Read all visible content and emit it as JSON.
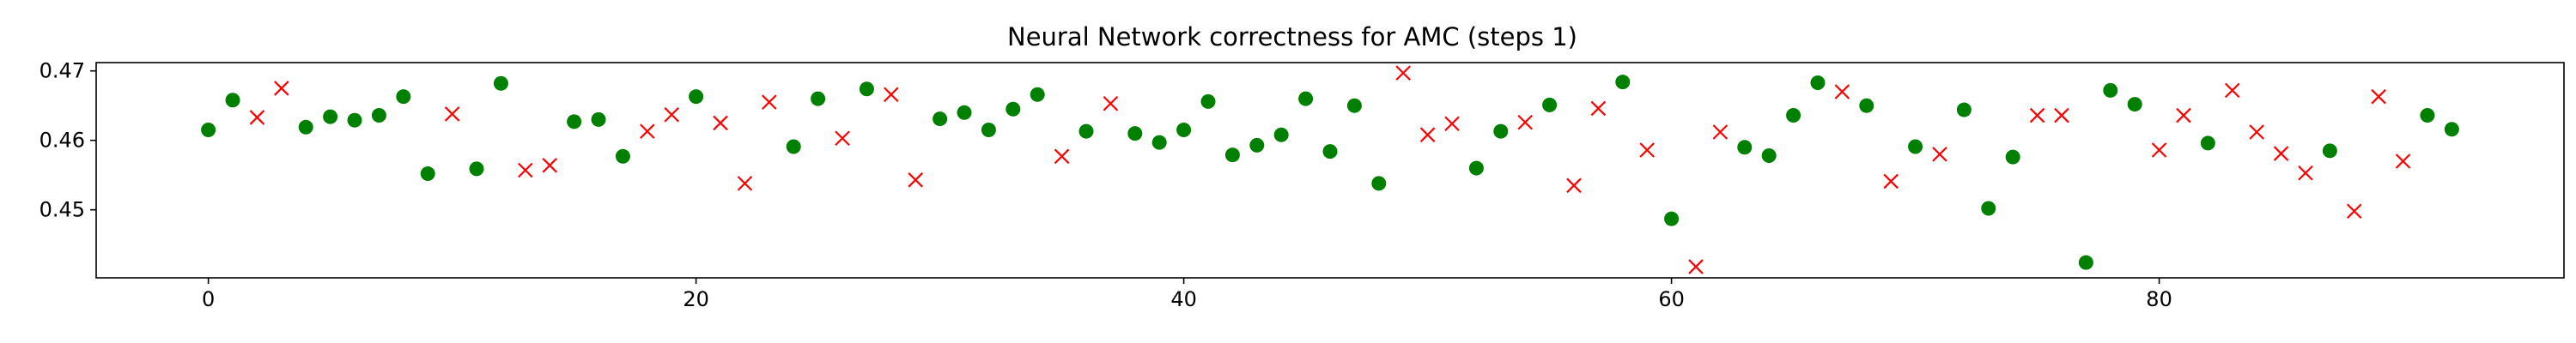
{
  "chart_data": {
    "type": "scatter",
    "title": "Neural Network correctness for AMC (steps 1)",
    "xlabel": "",
    "ylabel": "",
    "xlim": [
      -4.6,
      96.6
    ],
    "ylim": [
      0.4402,
      0.4712
    ],
    "xticks": [
      0,
      20,
      40,
      60,
      80
    ],
    "yticks": [
      0.45,
      0.46,
      0.47
    ],
    "grid": false,
    "legend": "none",
    "colors": {
      "correct": "#008000",
      "incorrect": "#ff0000"
    },
    "series": [
      {
        "marker": "circle",
        "x": [
          0,
          1,
          4,
          5,
          6,
          7,
          8,
          9,
          11,
          12,
          15,
          16,
          17,
          20,
          24,
          25,
          27,
          30,
          31,
          32,
          33,
          34,
          36,
          38,
          39,
          40,
          41,
          42,
          43,
          44,
          45,
          46,
          47,
          48,
          52,
          53,
          55,
          58,
          60,
          63,
          64,
          65,
          66,
          68,
          70,
          72,
          73,
          74,
          77,
          78,
          79,
          82,
          87,
          91,
          92
        ],
        "y": [
          0.4615,
          0.4658,
          0.4619,
          0.4634,
          0.4629,
          0.4636,
          0.4663,
          0.4552,
          0.4559,
          0.4682,
          0.4627,
          0.463,
          0.4577,
          0.4663,
          0.4591,
          0.466,
          0.4674,
          0.4631,
          0.464,
          0.4615,
          0.4645,
          0.4666,
          0.4613,
          0.461,
          0.4597,
          0.4615,
          0.4656,
          0.4579,
          0.4593,
          0.4608,
          0.466,
          0.4584,
          0.465,
          0.4538,
          0.456,
          0.4613,
          0.4651,
          0.4684,
          0.4487,
          0.459,
          0.4578,
          0.4636,
          0.4683,
          0.465,
          0.4591,
          0.4644,
          0.4502,
          0.4576,
          0.4424,
          0.4672,
          0.4652,
          0.4596,
          0.4585,
          0.4636,
          0.4616
        ]
      },
      {
        "marker": "x",
        "x": [
          2,
          3,
          10,
          13,
          14,
          18,
          19,
          21,
          22,
          23,
          26,
          28,
          29,
          35,
          37,
          49,
          50,
          51,
          54,
          56,
          57,
          59,
          61,
          62,
          67,
          69,
          71,
          75,
          76,
          80,
          81,
          83,
          84,
          85,
          86,
          88,
          89,
          90
        ],
        "y": [
          0.4633,
          0.4675,
          0.4638,
          0.4557,
          0.4564,
          0.4613,
          0.4637,
          0.4625,
          0.4538,
          0.4655,
          0.4603,
          0.4666,
          0.4543,
          0.4577,
          0.4653,
          0.4697,
          0.4608,
          0.4624,
          0.4626,
          0.4535,
          0.4646,
          0.4586,
          0.4418,
          0.4612,
          0.467,
          0.4541,
          0.458,
          0.4636,
          0.4636,
          0.4586,
          0.4636,
          0.4672,
          0.4612,
          0.4581,
          0.4553,
          0.4498,
          0.4663,
          0.457
        ]
      }
    ]
  }
}
